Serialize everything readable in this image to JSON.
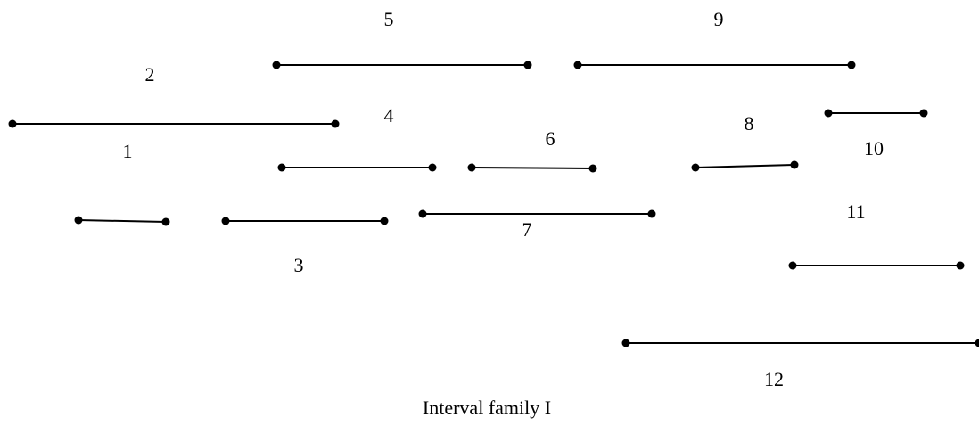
{
  "diagram": {
    "caption": "Interval family I",
    "stroke_color": "#000000",
    "intervals": [
      {
        "label": "1"
      },
      {
        "label": "2"
      },
      {
        "label": "3"
      },
      {
        "label": "4"
      },
      {
        "label": "5"
      },
      {
        "label": "6"
      },
      {
        "label": "7"
      },
      {
        "label": "8"
      },
      {
        "label": "9"
      },
      {
        "label": "10"
      },
      {
        "label": "11"
      },
      {
        "label": "12"
      }
    ]
  }
}
